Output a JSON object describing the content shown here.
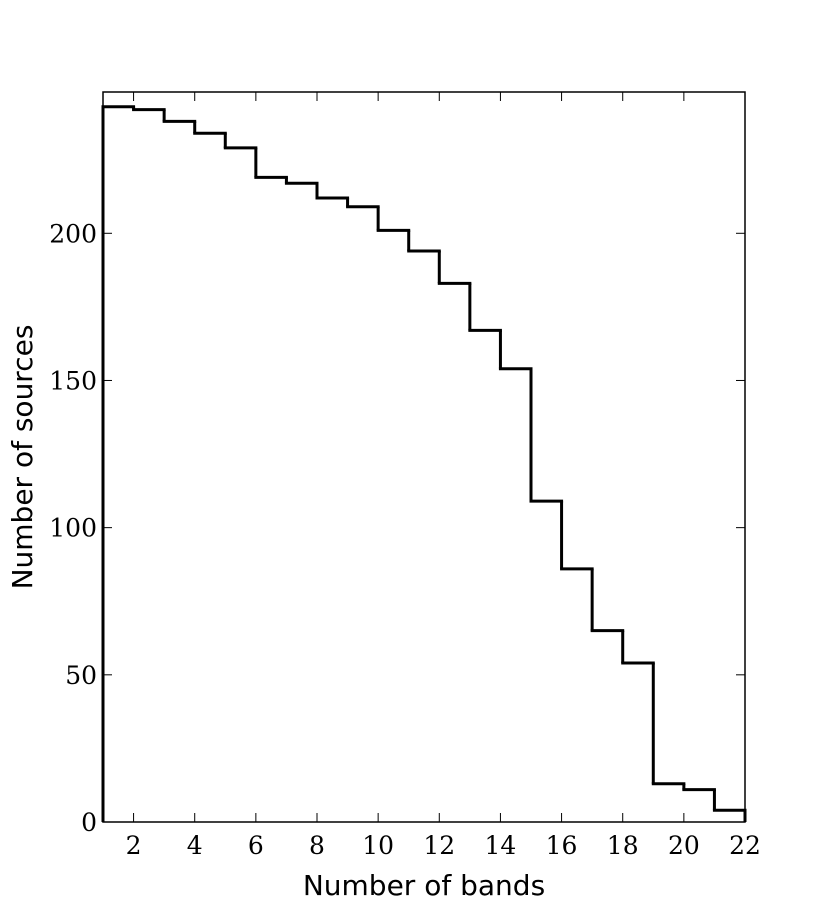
{
  "chart_data": {
    "type": "histogram",
    "xlabel": "Number of bands",
    "ylabel": "Number of sources",
    "bins": [
      1,
      2,
      3,
      4,
      5,
      6,
      7,
      8,
      9,
      10,
      11,
      12,
      13,
      14,
      15,
      16,
      17,
      18,
      19,
      20,
      21,
      22
    ],
    "counts": [
      243,
      242,
      238,
      234,
      229,
      219,
      217,
      212,
      209,
      201,
      194,
      183,
      167,
      154,
      109,
      86,
      65,
      54,
      13,
      11,
      4
    ],
    "color": "#000000",
    "xlim": [
      1,
      22
    ],
    "xticks": [
      2,
      4,
      6,
      8,
      10,
      12,
      14,
      16,
      18,
      20,
      22
    ],
    "ylim": [
      0,
      248
    ],
    "yticks": [
      0,
      50,
      100,
      150,
      200
    ]
  }
}
